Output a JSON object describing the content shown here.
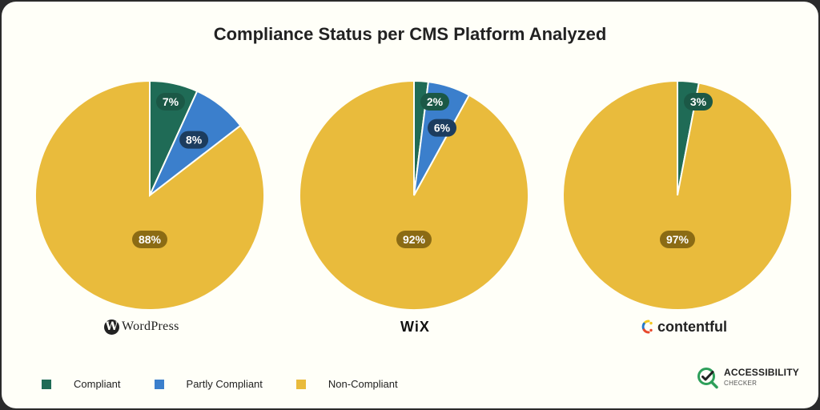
{
  "colors": {
    "compliant": "#1f6b56",
    "partly": "#3b7fcc",
    "noncompliant": "#e9bb3c",
    "compliant_label_bg": "#1b5846",
    "partly_label_bg": "#1c3c5e",
    "noncompliant_label_bg": "#8b6b14"
  },
  "chart_data": {
    "type": "pie",
    "title": "Compliance Status per CMS Platform Analyzed",
    "categories": [
      "Compliant",
      "Partly Compliant",
      "Non-Compliant"
    ],
    "charts": [
      {
        "platform": "WordPress",
        "values": [
          7,
          8,
          88
        ],
        "labels": [
          "7%",
          "8%",
          "88%"
        ]
      },
      {
        "platform": "WiX",
        "values": [
          2,
          6,
          92
        ],
        "labels": [
          "2%",
          "6%",
          "92%"
        ]
      },
      {
        "platform": "contentful",
        "values": [
          3,
          0,
          97
        ],
        "labels": [
          "3%",
          "",
          "97%"
        ]
      }
    ],
    "legend_position": "bottom-left"
  },
  "logos": {
    "wordpress_mark": "W",
    "wordpress_text": "WordPress",
    "wix_text": "WiX",
    "contentful_text": "contentful"
  },
  "legend": {
    "items": [
      "Compliant",
      "Partly Compliant",
      "Non-Compliant"
    ]
  },
  "brand": {
    "name": "ACCESSIBILITY",
    "sub": "CHECKER",
    "icon": "check-magnifier-icon"
  }
}
